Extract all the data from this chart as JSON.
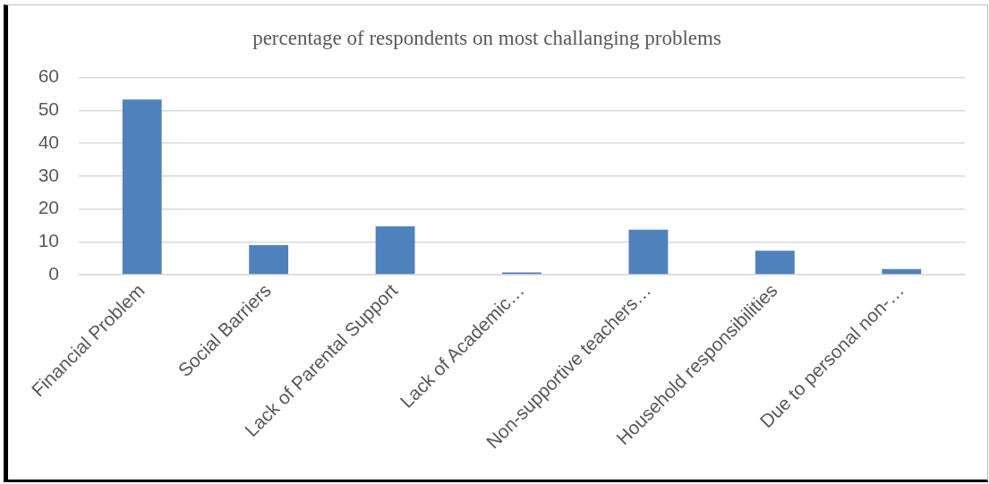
{
  "chart_data": {
    "type": "bar",
    "title": "percentage of respondents on most challanging problems",
    "categories": [
      "Financial Problem",
      "Social Barriers",
      "Lack of Parental Support",
      "Lack of Academic…",
      "Non-supportive teachers…",
      "Household responsibilities",
      "Due to personal non-…"
    ],
    "values": [
      53.3,
      9,
      14.7,
      0.7,
      13.7,
      7.3,
      1.7
    ],
    "color": "#4f81bd",
    "ylim": [
      0,
      60
    ],
    "yticks": [
      0,
      10,
      20,
      30,
      40,
      50,
      60
    ],
    "grid": "y"
  }
}
